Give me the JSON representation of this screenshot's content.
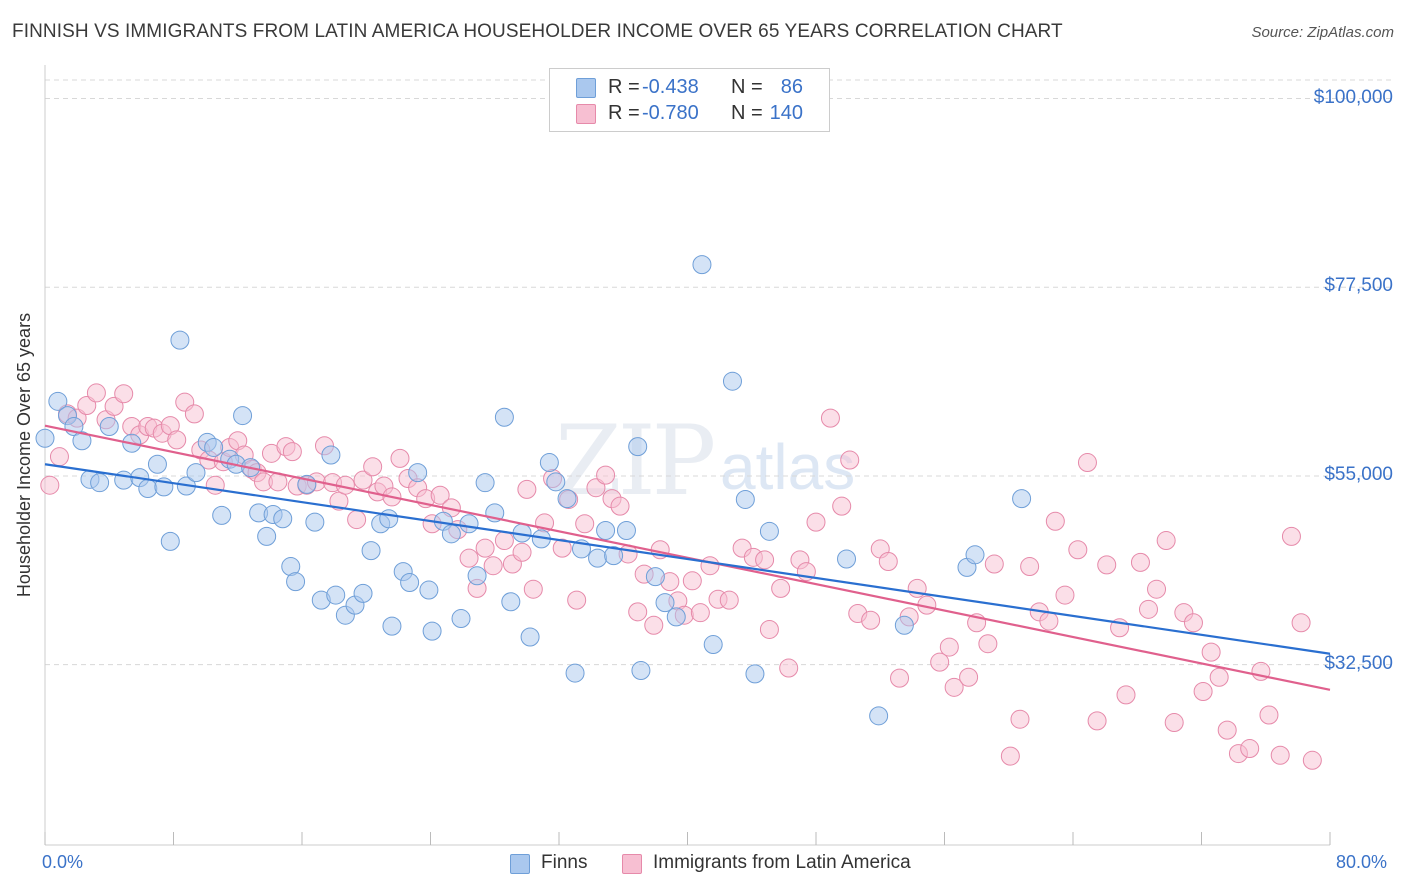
{
  "title": "FINNISH VS IMMIGRANTS FROM LATIN AMERICA HOUSEHOLDER INCOME OVER 65 YEARS CORRELATION CHART",
  "source": "Source: ZipAtlas.com",
  "watermark": {
    "zip": "ZIP",
    "atlas": "atlas"
  },
  "legend_top": {
    "rows": [
      {
        "r_label": "R =",
        "r_value": "-0.438",
        "n_label": "N =",
        "n_value": "86"
      },
      {
        "r_label": "R =",
        "r_value": "-0.780",
        "n_label": "N =",
        "n_value": "140"
      }
    ]
  },
  "legend_bottom": {
    "finns": "Finns",
    "latin": "Immigrants from Latin America"
  },
  "colors": {
    "finns_fill": "#aac8ee",
    "finns_stroke": "#6f9fd8",
    "finns_line": "#2a6fd0",
    "latin_fill": "#f7bfd2",
    "latin_stroke": "#e68aaa",
    "latin_line": "#e0608d",
    "grid": "#d8d8d8",
    "tick_label": "#3a72c8"
  },
  "chart_data": {
    "type": "scatter",
    "title": "FINNISH VS IMMIGRANTS FROM LATIN AMERICA HOUSEHOLDER INCOME OVER 65 YEARS CORRELATION CHART",
    "xlabel": "",
    "ylabel": "Householder Income Over 65 years",
    "xlim": [
      0,
      80
    ],
    "ylim": [
      11000,
      104000
    ],
    "x_tick_labels": [
      "0.0%",
      "80.0%"
    ],
    "y_ticks": [
      32500,
      55000,
      77500,
      100000
    ],
    "y_tick_labels": [
      "$32,500",
      "$55,000",
      "$77,500",
      "$100,000"
    ],
    "grid": true,
    "legend_position": "top-center",
    "series": [
      {
        "name": "Finns",
        "r": -0.438,
        "n": 86,
        "trend": [
          [
            0,
            56400
          ],
          [
            80,
            33800
          ]
        ],
        "points": [
          [
            0,
            59500
          ],
          [
            0.8,
            63900
          ],
          [
            1.4,
            62200
          ],
          [
            1.8,
            60900
          ],
          [
            2.3,
            59200
          ],
          [
            2.8,
            54600
          ],
          [
            3.4,
            54200
          ],
          [
            4.0,
            60900
          ],
          [
            4.9,
            54500
          ],
          [
            5.4,
            58900
          ],
          [
            5.9,
            54800
          ],
          [
            6.4,
            53500
          ],
          [
            7.0,
            56400
          ],
          [
            7.4,
            53700
          ],
          [
            7.8,
            47200
          ],
          [
            8.4,
            71200
          ],
          [
            8.8,
            53800
          ],
          [
            9.4,
            55400
          ],
          [
            10.1,
            59000
          ],
          [
            10.5,
            58400
          ],
          [
            11.0,
            50300
          ],
          [
            11.5,
            57000
          ],
          [
            11.9,
            56400
          ],
          [
            12.3,
            62200
          ],
          [
            12.8,
            56000
          ],
          [
            13.3,
            50600
          ],
          [
            13.8,
            47800
          ],
          [
            14.2,
            50400
          ],
          [
            14.8,
            49900
          ],
          [
            15.3,
            44200
          ],
          [
            15.6,
            42400
          ],
          [
            16.3,
            54000
          ],
          [
            16.8,
            49500
          ],
          [
            17.2,
            40200
          ],
          [
            17.8,
            57500
          ],
          [
            18.1,
            40800
          ],
          [
            18.7,
            38400
          ],
          [
            19.3,
            39600
          ],
          [
            19.8,
            41000
          ],
          [
            20.3,
            46100
          ],
          [
            20.9,
            49300
          ],
          [
            21.4,
            49900
          ],
          [
            21.6,
            37100
          ],
          [
            22.3,
            43600
          ],
          [
            22.7,
            42300
          ],
          [
            23.2,
            55400
          ],
          [
            23.9,
            41400
          ],
          [
            24.1,
            36500
          ],
          [
            24.8,
            49600
          ],
          [
            25.3,
            48100
          ],
          [
            25.9,
            38000
          ],
          [
            26.4,
            49300
          ],
          [
            26.9,
            43100
          ],
          [
            27.4,
            54200
          ],
          [
            28.0,
            50600
          ],
          [
            28.6,
            62000
          ],
          [
            29.0,
            40000
          ],
          [
            29.7,
            48200
          ],
          [
            30.2,
            35800
          ],
          [
            30.9,
            47500
          ],
          [
            31.4,
            56600
          ],
          [
            31.8,
            54300
          ],
          [
            32.5,
            52300
          ],
          [
            33.0,
            31500
          ],
          [
            33.4,
            46300
          ],
          [
            34.4,
            45200
          ],
          [
            34.9,
            48500
          ],
          [
            35.4,
            45500
          ],
          [
            36.2,
            48500
          ],
          [
            36.9,
            58500
          ],
          [
            37.1,
            31800
          ],
          [
            38.0,
            43000
          ],
          [
            38.6,
            39900
          ],
          [
            39.3,
            38200
          ],
          [
            40.9,
            80200
          ],
          [
            41.6,
            34900
          ],
          [
            42.8,
            66300
          ],
          [
            43.6,
            52200
          ],
          [
            44.2,
            31400
          ],
          [
            45.1,
            48400
          ],
          [
            49.9,
            45100
          ],
          [
            51.9,
            26400
          ],
          [
            53.5,
            37200
          ],
          [
            57.4,
            44100
          ],
          [
            57.9,
            45600
          ],
          [
            60.8,
            52300
          ]
        ]
      },
      {
        "name": "Immigrants from Latin America",
        "r": -0.78,
        "n": 140,
        "trend": [
          [
            0,
            61000
          ],
          [
            80,
            29500
          ]
        ],
        "points": [
          [
            0.3,
            53900
          ],
          [
            0.9,
            57300
          ],
          [
            1.4,
            62400
          ],
          [
            2.0,
            61900
          ],
          [
            2.6,
            63400
          ],
          [
            3.2,
            64900
          ],
          [
            3.8,
            61700
          ],
          [
            4.3,
            63300
          ],
          [
            4.9,
            64800
          ],
          [
            5.4,
            60900
          ],
          [
            5.9,
            59900
          ],
          [
            6.4,
            60900
          ],
          [
            6.8,
            60700
          ],
          [
            7.3,
            60100
          ],
          [
            7.8,
            61000
          ],
          [
            8.2,
            59300
          ],
          [
            8.7,
            63800
          ],
          [
            9.3,
            62400
          ],
          [
            9.7,
            58100
          ],
          [
            10.2,
            56900
          ],
          [
            10.6,
            53900
          ],
          [
            11.1,
            56700
          ],
          [
            11.5,
            58400
          ],
          [
            12.0,
            59200
          ],
          [
            12.4,
            57500
          ],
          [
            12.9,
            55800
          ],
          [
            13.2,
            55400
          ],
          [
            13.6,
            54300
          ],
          [
            14.1,
            57700
          ],
          [
            14.5,
            54300
          ],
          [
            15.0,
            58500
          ],
          [
            15.4,
            57900
          ],
          [
            15.7,
            53800
          ],
          [
            16.3,
            53900
          ],
          [
            16.9,
            54300
          ],
          [
            17.4,
            58600
          ],
          [
            17.9,
            54200
          ],
          [
            18.3,
            52000
          ],
          [
            18.7,
            53900
          ],
          [
            19.4,
            49800
          ],
          [
            19.8,
            54500
          ],
          [
            20.4,
            56100
          ],
          [
            20.7,
            53100
          ],
          [
            21.1,
            53800
          ],
          [
            21.6,
            52500
          ],
          [
            22.1,
            57100
          ],
          [
            22.6,
            54700
          ],
          [
            23.2,
            53600
          ],
          [
            23.7,
            52300
          ],
          [
            24.1,
            49300
          ],
          [
            24.6,
            52700
          ],
          [
            25.3,
            51200
          ],
          [
            25.7,
            48600
          ],
          [
            26.4,
            45200
          ],
          [
            26.9,
            41600
          ],
          [
            27.4,
            46400
          ],
          [
            27.9,
            44300
          ],
          [
            28.6,
            47300
          ],
          [
            29.1,
            44500
          ],
          [
            29.7,
            45900
          ],
          [
            30.0,
            53400
          ],
          [
            30.4,
            41500
          ],
          [
            31.1,
            49400
          ],
          [
            31.6,
            54700
          ],
          [
            32.2,
            46400
          ],
          [
            32.6,
            52200
          ],
          [
            33.1,
            40200
          ],
          [
            33.6,
            49300
          ],
          [
            34.3,
            53600
          ],
          [
            34.9,
            55100
          ],
          [
            35.3,
            52300
          ],
          [
            35.8,
            51400
          ],
          [
            36.3,
            45700
          ],
          [
            36.9,
            38800
          ],
          [
            37.3,
            43300
          ],
          [
            37.9,
            37200
          ],
          [
            38.3,
            46200
          ],
          [
            38.9,
            42400
          ],
          [
            39.4,
            40100
          ],
          [
            39.8,
            38400
          ],
          [
            40.3,
            42500
          ],
          [
            40.8,
            38700
          ],
          [
            41.4,
            44300
          ],
          [
            41.9,
            40300
          ],
          [
            42.6,
            40200
          ],
          [
            43.4,
            46400
          ],
          [
            44.1,
            45300
          ],
          [
            44.8,
            45000
          ],
          [
            45.1,
            36700
          ],
          [
            45.8,
            41600
          ],
          [
            46.3,
            32100
          ],
          [
            47.0,
            45000
          ],
          [
            47.4,
            43600
          ],
          [
            48.0,
            49500
          ],
          [
            48.9,
            61900
          ],
          [
            49.6,
            51400
          ],
          [
            50.1,
            56900
          ],
          [
            50.6,
            38600
          ],
          [
            51.4,
            37800
          ],
          [
            52.0,
            46300
          ],
          [
            52.5,
            44800
          ],
          [
            53.2,
            30900
          ],
          [
            53.8,
            38200
          ],
          [
            54.3,
            41600
          ],
          [
            54.9,
            39600
          ],
          [
            55.7,
            32800
          ],
          [
            56.3,
            34600
          ],
          [
            56.6,
            29800
          ],
          [
            57.5,
            31000
          ],
          [
            58.0,
            37500
          ],
          [
            58.7,
            35000
          ],
          [
            59.1,
            44500
          ],
          [
            60.1,
            21600
          ],
          [
            60.7,
            26000
          ],
          [
            61.3,
            44200
          ],
          [
            61.9,
            38800
          ],
          [
            62.5,
            37700
          ],
          [
            62.9,
            49600
          ],
          [
            63.5,
            40800
          ],
          [
            64.3,
            46200
          ],
          [
            64.9,
            56600
          ],
          [
            65.5,
            25800
          ],
          [
            66.1,
            44400
          ],
          [
            66.9,
            36900
          ],
          [
            67.3,
            28900
          ],
          [
            68.2,
            44700
          ],
          [
            68.7,
            39100
          ],
          [
            69.2,
            41500
          ],
          [
            69.8,
            47300
          ],
          [
            70.3,
            25600
          ],
          [
            70.9,
            38700
          ],
          [
            71.5,
            37500
          ],
          [
            72.1,
            29300
          ],
          [
            72.6,
            34000
          ],
          [
            73.1,
            31000
          ],
          [
            73.6,
            24700
          ],
          [
            74.3,
            21900
          ],
          [
            75.0,
            22500
          ],
          [
            75.7,
            31700
          ],
          [
            76.2,
            26500
          ],
          [
            76.9,
            21700
          ],
          [
            77.6,
            47800
          ],
          [
            78.2,
            37500
          ],
          [
            78.9,
            21100
          ]
        ]
      }
    ]
  }
}
